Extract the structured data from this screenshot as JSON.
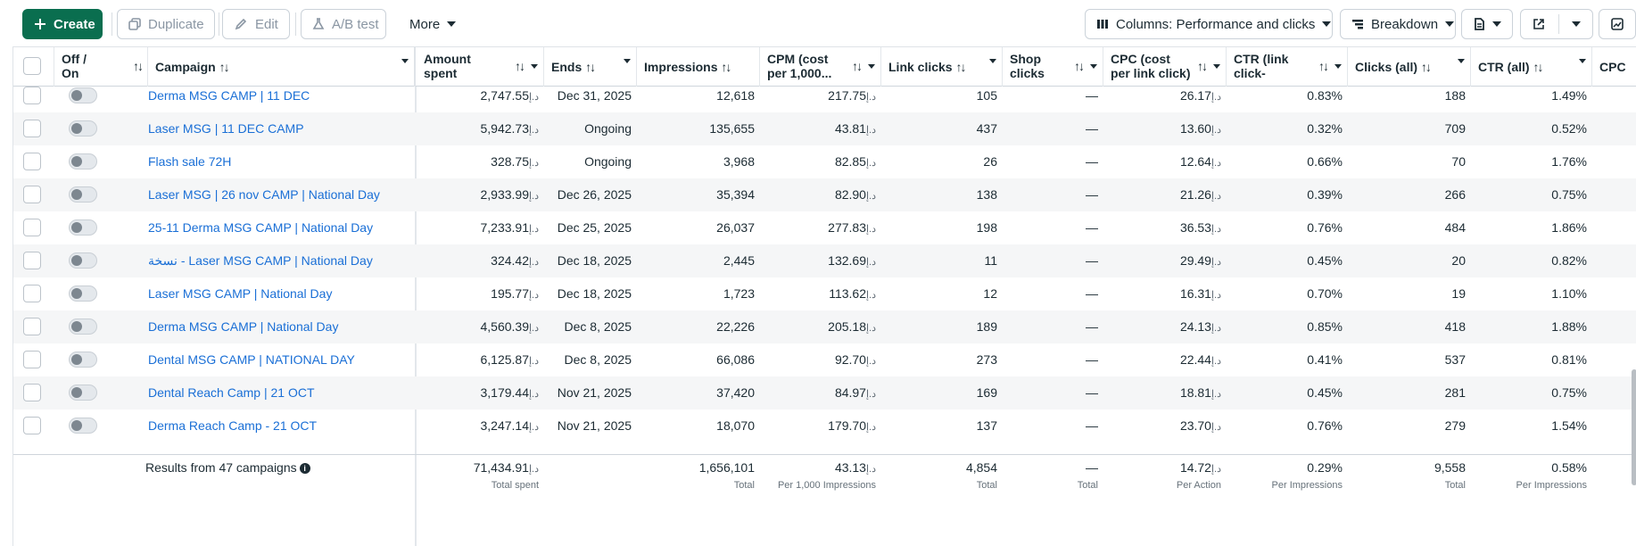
{
  "toolbar": {
    "create": "Create",
    "duplicate": "Duplicate",
    "edit": "Edit",
    "ab_test": "A/B test",
    "more": "More",
    "columns": "Columns: Performance and clicks",
    "breakdown": "Breakdown"
  },
  "header": {
    "off_on": "Off / On",
    "campaign": "Campaign",
    "amount_spent": "Amount spent",
    "ends": "Ends",
    "impressions": "Impressions",
    "cpm": "CPM (cost per 1,000...",
    "link_clicks": "Link clicks",
    "shop_clicks": "Shop clicks",
    "cpc_link": "CPC (cost per link click)",
    "ctr_link": "CTR (link click-throu...",
    "clicks_all": "Clicks (all)",
    "ctr_all": "CTR (all)",
    "cpc_all": "CPC (all"
  },
  "currency": "د.إ",
  "rows": [
    {
      "campaign": "Derma MSG CAMP | 11 DEC",
      "amount_spent": "2,747.55",
      "ends": "Dec 31, 2025",
      "impressions": "12,618",
      "cpm": "217.75",
      "link_clicks": "105",
      "shop_clicks": "—",
      "cpc_link": "26.17",
      "ctr_link": "0.83%",
      "clicks_all": "188",
      "ctr_all": "1.49%"
    },
    {
      "campaign": "Laser MSG | 11 DEC CAMP",
      "amount_spent": "5,942.73",
      "ends": "Ongoing",
      "impressions": "135,655",
      "cpm": "43.81",
      "link_clicks": "437",
      "shop_clicks": "—",
      "cpc_link": "13.60",
      "ctr_link": "0.32%",
      "clicks_all": "709",
      "ctr_all": "0.52%"
    },
    {
      "campaign": "Flash sale 72H",
      "amount_spent": "328.75",
      "ends": "Ongoing",
      "impressions": "3,968",
      "cpm": "82.85",
      "link_clicks": "26",
      "shop_clicks": "—",
      "cpc_link": "12.64",
      "ctr_link": "0.66%",
      "clicks_all": "70",
      "ctr_all": "1.76%"
    },
    {
      "campaign": "Laser MSG | 26 nov CAMP | National Day",
      "amount_spent": "2,933.99",
      "ends": "Dec 26, 2025",
      "impressions": "35,394",
      "cpm": "82.90",
      "link_clicks": "138",
      "shop_clicks": "—",
      "cpc_link": "21.26",
      "ctr_link": "0.39%",
      "clicks_all": "266",
      "ctr_all": "0.75%"
    },
    {
      "campaign": "25-11 Derma MSG CAMP | National Day",
      "amount_spent": "7,233.91",
      "ends": "Dec 25, 2025",
      "impressions": "26,037",
      "cpm": "277.83",
      "link_clicks": "198",
      "shop_clicks": "—",
      "cpc_link": "36.53",
      "ctr_link": "0.76%",
      "clicks_all": "484",
      "ctr_all": "1.86%"
    },
    {
      "campaign": "نسخة - Laser MSG CAMP | National Day",
      "amount_spent": "324.42",
      "ends": "Dec 18, 2025",
      "impressions": "2,445",
      "cpm": "132.69",
      "link_clicks": "11",
      "shop_clicks": "—",
      "cpc_link": "29.49",
      "ctr_link": "0.45%",
      "clicks_all": "20",
      "ctr_all": "0.82%"
    },
    {
      "campaign": "Laser MSG CAMP | National Day",
      "amount_spent": "195.77",
      "ends": "Dec 18, 2025",
      "impressions": "1,723",
      "cpm": "113.62",
      "link_clicks": "12",
      "shop_clicks": "—",
      "cpc_link": "16.31",
      "ctr_link": "0.70%",
      "clicks_all": "19",
      "ctr_all": "1.10%"
    },
    {
      "campaign": "Derma MSG CAMP | National Day",
      "amount_spent": "4,560.39",
      "ends": "Dec 8, 2025",
      "impressions": "22,226",
      "cpm": "205.18",
      "link_clicks": "189",
      "shop_clicks": "—",
      "cpc_link": "24.13",
      "ctr_link": "0.85%",
      "clicks_all": "418",
      "ctr_all": "1.88%"
    },
    {
      "campaign": "Dental MSG CAMP | NATIONAL DAY",
      "amount_spent": "6,125.87",
      "ends": "Dec 8, 2025",
      "impressions": "66,086",
      "cpm": "92.70",
      "link_clicks": "273",
      "shop_clicks": "—",
      "cpc_link": "22.44",
      "ctr_link": "0.41%",
      "clicks_all": "537",
      "ctr_all": "0.81%"
    },
    {
      "campaign": "Dental Reach Camp | 21 OCT",
      "amount_spent": "3,179.44",
      "ends": "Nov 21, 2025",
      "impressions": "37,420",
      "cpm": "84.97",
      "link_clicks": "169",
      "shop_clicks": "—",
      "cpc_link": "18.81",
      "ctr_link": "0.45%",
      "clicks_all": "281",
      "ctr_all": "0.75%"
    },
    {
      "campaign": "Derma Reach Camp - 21 OCT",
      "amount_spent": "3,247.14",
      "ends": "Nov 21, 2025",
      "impressions": "18,070",
      "cpm": "179.70",
      "link_clicks": "137",
      "shop_clicks": "—",
      "cpc_link": "23.70",
      "ctr_link": "0.76%",
      "clicks_all": "279",
      "ctr_all": "1.54%"
    }
  ],
  "footer": {
    "results_label": "Results from 47 campaigns",
    "amount_spent": "71,434.91",
    "amount_spent_sub": "Total spent",
    "impressions": "1,656,101",
    "impressions_sub": "Total",
    "cpm": "43.13",
    "cpm_sub": "Per 1,000 Impressions",
    "link_clicks": "4,854",
    "link_clicks_sub": "Total",
    "shop_clicks": "—",
    "shop_clicks_sub": "Total",
    "cpc_link": "14.72",
    "cpc_link_sub": "Per Action",
    "ctr_link": "0.29%",
    "ctr_link_sub": "Per Impressions",
    "clicks_all": "9,558",
    "clicks_all_sub": "Total",
    "ctr_all": "0.58%",
    "ctr_all_sub": "Per Impressions"
  }
}
